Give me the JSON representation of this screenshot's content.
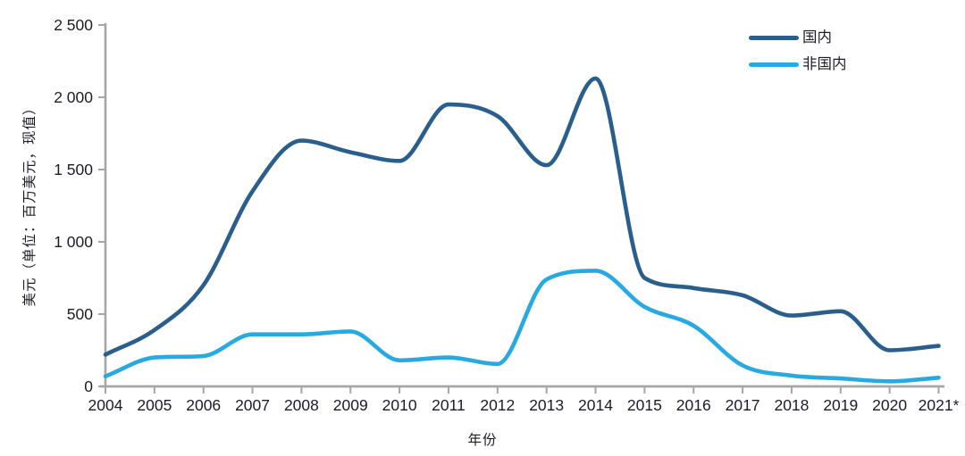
{
  "chart_data": {
    "type": "line",
    "title": "",
    "xlabel": "年份",
    "ylabel": "美元（单位：百万美元，现值）",
    "categories": [
      "2004",
      "2005",
      "2006",
      "2007",
      "2008",
      "2009",
      "2010",
      "2011",
      "2012",
      "2013",
      "2014",
      "2015",
      "2016",
      "2017",
      "2018",
      "2019",
      "2020",
      "2021*"
    ],
    "series": [
      {
        "name": "国内",
        "color": "#2A5E8C",
        "values": [
          220,
          390,
          700,
          1350,
          1700,
          1620,
          1560,
          1950,
          1870,
          1530,
          2130,
          750,
          680,
          630,
          490,
          520,
          250,
          280
        ]
      },
      {
        "name": "非国内",
        "color": "#29A9E1",
        "values": [
          70,
          200,
          210,
          360,
          360,
          380,
          180,
          200,
          155,
          740,
          800,
          550,
          420,
          145,
          75,
          55,
          35,
          60
        ]
      }
    ],
    "ylim": [
      0,
      2500
    ],
    "y_ticks": [
      {
        "value": 0,
        "label": "0"
      },
      {
        "value": 500,
        "label": "500"
      },
      {
        "value": 1000,
        "label": "1 000"
      },
      {
        "value": 1500,
        "label": "1 500"
      },
      {
        "value": 2000,
        "label": "2 000"
      },
      {
        "value": 2500,
        "label": "2 500"
      }
    ],
    "grid": false,
    "legend_position": "top-right"
  },
  "colors": {
    "axis": "#A6A6A6",
    "text": "#1C1C26",
    "background": "#FFFFFF"
  }
}
